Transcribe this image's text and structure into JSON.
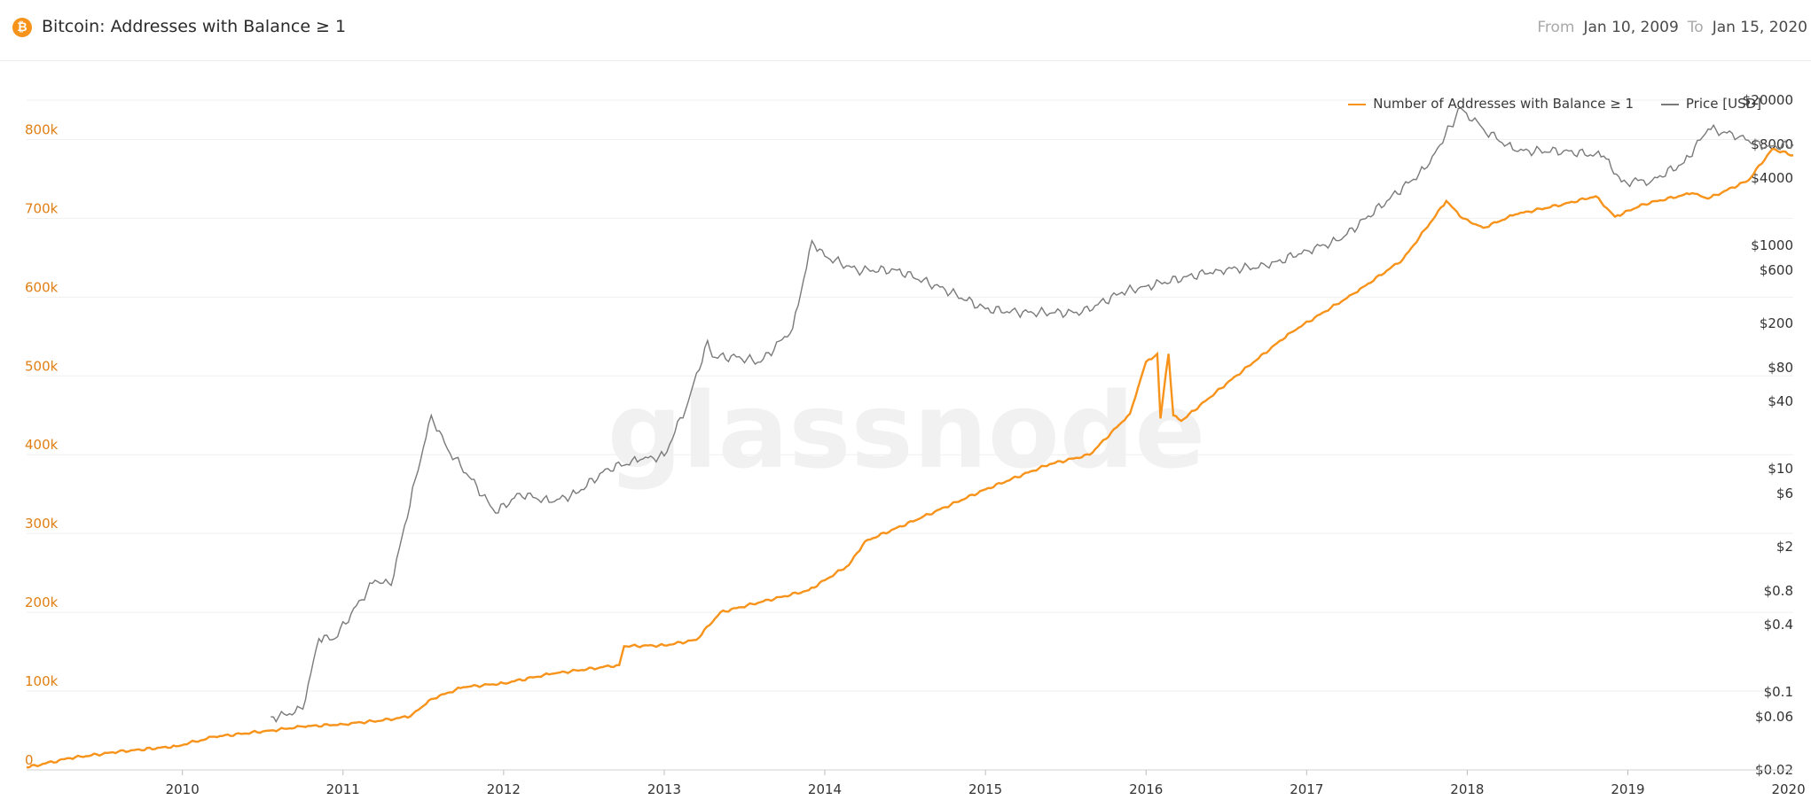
{
  "header": {
    "title": "Bitcoin: Addresses with Balance ≥ 1",
    "from_label": "From",
    "from_value": "Jan 10, 2009",
    "to_label": "To",
    "to_value": "Jan 15, 2020"
  },
  "watermark": "glassnode",
  "colors": {
    "addresses": "#f7931a",
    "price": "#7a7a7a",
    "left_axis": "#e07f13",
    "grid": "#efefef"
  },
  "chart_data": {
    "type": "line",
    "legend_position": "top-right",
    "grid": true,
    "x_ticks": [
      "2010",
      "2011",
      "2012",
      "2013",
      "2014",
      "2015",
      "2016",
      "2017",
      "2018",
      "2019",
      "2020"
    ],
    "y_left": {
      "ticks": [
        "0",
        "100k",
        "200k",
        "300k",
        "400k",
        "500k",
        "600k",
        "700k",
        "800k"
      ],
      "lim": [
        0,
        850000
      ]
    },
    "y_right": {
      "scale": "log",
      "ticks": [
        "$0.02",
        "$0.06",
        "$0.1",
        "$0.4",
        "$0.8",
        "$2",
        "$6",
        "$10",
        "$40",
        "$80",
        "$200",
        "$600",
        "$1000",
        "$4000",
        "$8000",
        "$20000"
      ],
      "lim": [
        0.02,
        20000
      ]
    },
    "series": [
      {
        "name": "Number of Addresses with Balance ≥ 1",
        "axis": "left",
        "x": [
          2009.03,
          2009.3,
          2009.6,
          2009.96,
          2010.2,
          2010.55,
          2010.75,
          2011.0,
          2011.25,
          2011.42,
          2011.55,
          2011.75,
          2012.0,
          2012.3,
          2012.6,
          2012.72,
          2012.75,
          2013.0,
          2013.2,
          2013.35,
          2013.6,
          2013.9,
          2014.15,
          2014.25,
          2014.6,
          2015.0,
          2015.4,
          2015.65,
          2015.9,
          2016.0,
          2016.07,
          2016.09,
          2016.14,
          2016.17,
          2016.22,
          2016.5,
          2016.9,
          2017.3,
          2017.6,
          2017.87,
          2017.97,
          2018.1,
          2018.3,
          2018.6,
          2018.8,
          2018.92,
          2019.1,
          2019.4,
          2019.5,
          2019.75,
          2019.9,
          2020.03
        ],
        "y": [
          3000,
          15000,
          23000,
          30000,
          42000,
          50000,
          55000,
          58000,
          63000,
          68000,
          90000,
          105000,
          110000,
          122000,
          130000,
          133000,
          157000,
          158000,
          165000,
          200000,
          213000,
          228000,
          260000,
          290000,
          320000,
          356000,
          388000,
          400000,
          452000,
          518000,
          528000,
          446000,
          528000,
          450000,
          443000,
          490000,
          555000,
          605000,
          648000,
          722000,
          700000,
          688000,
          705000,
          718000,
          728000,
          702000,
          718000,
          732000,
          725000,
          748000,
          788000,
          780000
        ]
      },
      {
        "name": "Price [USD]",
        "axis": "right",
        "x": [
          2010.55,
          2010.6,
          2010.75,
          2010.85,
          2010.95,
          2011.05,
          2011.2,
          2011.3,
          2011.45,
          2011.55,
          2011.65,
          2011.8,
          2011.95,
          2012.1,
          2012.3,
          2012.45,
          2012.65,
          2012.85,
          2013.0,
          2013.15,
          2013.27,
          2013.3,
          2013.45,
          2013.6,
          2013.8,
          2013.92,
          2014.0,
          2014.2,
          2014.45,
          2014.75,
          2015.0,
          2015.2,
          2015.6,
          2015.85,
          2016.0,
          2016.45,
          2016.75,
          2017.0,
          2017.2,
          2017.5,
          2017.75,
          2017.96,
          2018.1,
          2018.3,
          2018.6,
          2018.85,
          2018.96,
          2019.15,
          2019.35,
          2019.5,
          2019.7,
          2019.85,
          2020.03
        ],
        "y": [
          0.06,
          0.06,
          0.07,
          0.3,
          0.3,
          0.5,
          1.0,
          0.9,
          8.0,
          30.0,
          15.0,
          8.0,
          4.0,
          6.0,
          5.0,
          6.0,
          10.0,
          12.0,
          13.0,
          40.0,
          140.0,
          100.0,
          100.0,
          90.0,
          180.0,
          1100.0,
          800.0,
          600.0,
          600.0,
          400.0,
          270.0,
          250.0,
          250.0,
          380.0,
          430.0,
          600.0,
          650.0,
          900.0,
          1100.0,
          2500.0,
          5000.0,
          17000.0,
          11000.0,
          7000.0,
          7000.0,
          6300.0,
          3700.0,
          3800.0,
          5500.0,
          11000.0,
          9500.0,
          7500.0,
          8000.0
        ]
      }
    ]
  }
}
